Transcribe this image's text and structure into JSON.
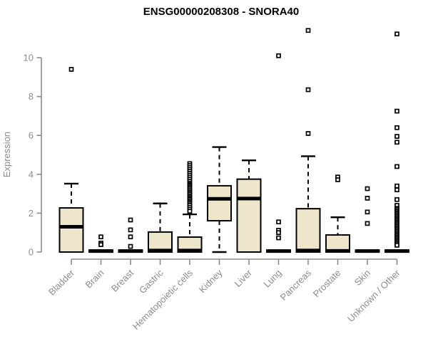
{
  "title": "ENSG00000208308 - SNORA40",
  "colors": {
    "box_fill": "#EDE6CA",
    "box_stroke": "#000000",
    "axis": "#8C8C8C",
    "label_gray": "#8C8C8C",
    "title_color": "#000000",
    "background": "#FFFFFF"
  },
  "chart_data": {
    "type": "boxplot",
    "title": "ENSG00000208308 - SNORA40",
    "xlabel": "",
    "ylabel": "Expression",
    "ylim": [
      0,
      11.5
    ],
    "yticks": [
      0,
      2,
      4,
      6,
      8,
      10
    ],
    "grid": false,
    "legend": "none",
    "categories": [
      "Bladder",
      "Brain",
      "Breast",
      "Gastric",
      "Hematopoietic cells",
      "Kidney",
      "Liver",
      "Lung",
      "Pancreas",
      "Prostate",
      "Skin",
      "Unknown / Other"
    ],
    "boxes": [
      {
        "label": "Bladder",
        "whisker_low": 0,
        "q1": 0,
        "median": 1.3,
        "q3": 2.27,
        "whisker_high": 3.52,
        "outliers": [
          9.4
        ]
      },
      {
        "label": "Brain",
        "whisker_low": 0,
        "q1": 0,
        "median": 0.05,
        "q3": 0.1,
        "whisker_high": 0.1,
        "outliers": [
          0.78,
          0.46,
          0.38
        ]
      },
      {
        "label": "Breast",
        "whisker_low": 0,
        "q1": 0,
        "median": 0.05,
        "q3": 0.1,
        "whisker_high": 0.1,
        "outliers": [
          1.65,
          1.14,
          0.78,
          0.29
        ]
      },
      {
        "label": "Gastric",
        "whisker_low": 0,
        "q1": 0,
        "median": 0.08,
        "q3": 1.03,
        "whisker_high": 2.5,
        "outliers": []
      },
      {
        "label": "Hematopoietic cells",
        "whisker_low": 0,
        "q1": 0,
        "median": 0.08,
        "q3": 0.77,
        "whisker_high": 1.94,
        "outliers": [
          4.55,
          4.45,
          4.35,
          4.25,
          4.15,
          4.05,
          3.95,
          3.85,
          3.75,
          3.65,
          3.55,
          3.48,
          3.42,
          3.35,
          3.28,
          3.2,
          3.12,
          3.05,
          2.98,
          2.9,
          2.83,
          2.76,
          2.7,
          2.62,
          2.55,
          2.48,
          2.4,
          2.3,
          2.2,
          2.1
        ]
      },
      {
        "label": "Kidney",
        "whisker_low": 0,
        "q1": 1.61,
        "median": 2.74,
        "q3": 3.41,
        "whisker_high": 5.4,
        "outliers": []
      },
      {
        "label": "Liver",
        "whisker_low": 0,
        "q1": 0,
        "median": 2.75,
        "q3": 3.75,
        "whisker_high": 4.72,
        "outliers": []
      },
      {
        "label": "Lung",
        "whisker_low": 0,
        "q1": 0,
        "median": 0.05,
        "q3": 0.1,
        "whisker_high": 0.1,
        "outliers": [
          10.1,
          1.55,
          1.12,
          1.0,
          0.73
        ]
      },
      {
        "label": "Pancreas",
        "whisker_low": 0,
        "q1": 0,
        "median": 0.08,
        "q3": 2.23,
        "whisker_high": 4.93,
        "outliers": [
          11.4,
          8.35,
          6.1
        ]
      },
      {
        "label": "Prostate",
        "whisker_low": 0,
        "q1": 0,
        "median": 0.06,
        "q3": 0.88,
        "whisker_high": 1.79,
        "outliers": [
          3.86,
          3.72
        ]
      },
      {
        "label": "Skin",
        "whisker_low": 0,
        "q1": 0,
        "median": 0.05,
        "q3": 0.1,
        "whisker_high": 0.1,
        "outliers": [
          3.26,
          2.77,
          2.06,
          1.47
        ]
      },
      {
        "label": "Unknown / Other",
        "whisker_low": 0,
        "q1": 0,
        "median": 0.05,
        "q3": 0.1,
        "whisker_high": 0.1,
        "outliers": [
          11.22,
          7.25,
          6.4,
          5.95,
          5.65,
          4.4,
          3.4,
          3.2,
          2.7,
          2.4,
          2.25,
          2.18,
          2.1,
          2.03,
          1.96,
          1.89,
          1.82,
          1.75,
          1.68,
          1.61,
          1.54,
          1.47,
          1.4,
          1.33,
          1.26,
          1.19,
          1.12,
          1.05,
          0.98,
          0.91,
          0.84,
          0.77,
          0.7,
          0.63,
          0.56,
          0.49,
          0.42,
          0.35
        ]
      }
    ]
  }
}
